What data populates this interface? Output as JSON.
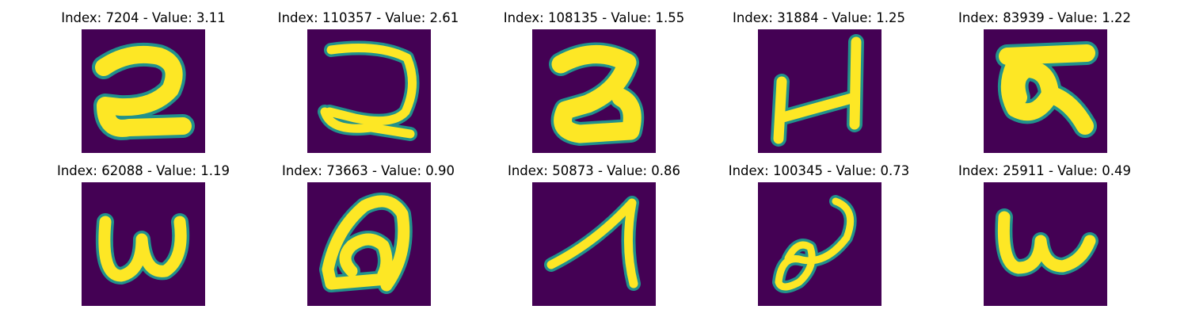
{
  "figure": {
    "colormap": {
      "background": "#440154",
      "mid": "#21918c",
      "foreground": "#fde725"
    },
    "panels": [
      {
        "index": "7204",
        "value": "3.11",
        "title": "Index: 7204 - Value: 3.11",
        "glyph": "digit-two-like"
      },
      {
        "index": "110357",
        "value": "2.61",
        "title": "Index: 110357 - Value: 2.61",
        "glyph": "reversed-c-with-foot"
      },
      {
        "index": "108135",
        "value": "1.55",
        "title": "Index: 108135 - Value: 1.55",
        "glyph": "digit-two-bold"
      },
      {
        "index": "31884",
        "value": "1.25",
        "title": "Index: 31884 - Value: 1.25",
        "glyph": "letter-h-like"
      },
      {
        "index": "83939",
        "value": "1.22",
        "title": "Index: 83939 - Value: 1.22",
        "glyph": "looped-glyph"
      },
      {
        "index": "62088",
        "value": "1.19",
        "title": "Index: 62088 - Value: 1.19",
        "glyph": "letter-w-lowercase"
      },
      {
        "index": "73663",
        "value": "0.90",
        "title": "Index: 73663 - Value: 0.90",
        "glyph": "letter-a-looped"
      },
      {
        "index": "50873",
        "value": "0.86",
        "title": "Index: 50873 - Value: 0.86",
        "glyph": "digit-one-slanted"
      },
      {
        "index": "100345",
        "value": "0.73",
        "title": "Index: 100345 - Value: 0.73",
        "glyph": "cursive-loop"
      },
      {
        "index": "25911",
        "value": "0.49",
        "title": "Index: 25911 - Value: 0.49",
        "glyph": "letter-w-lowercase"
      }
    ]
  }
}
